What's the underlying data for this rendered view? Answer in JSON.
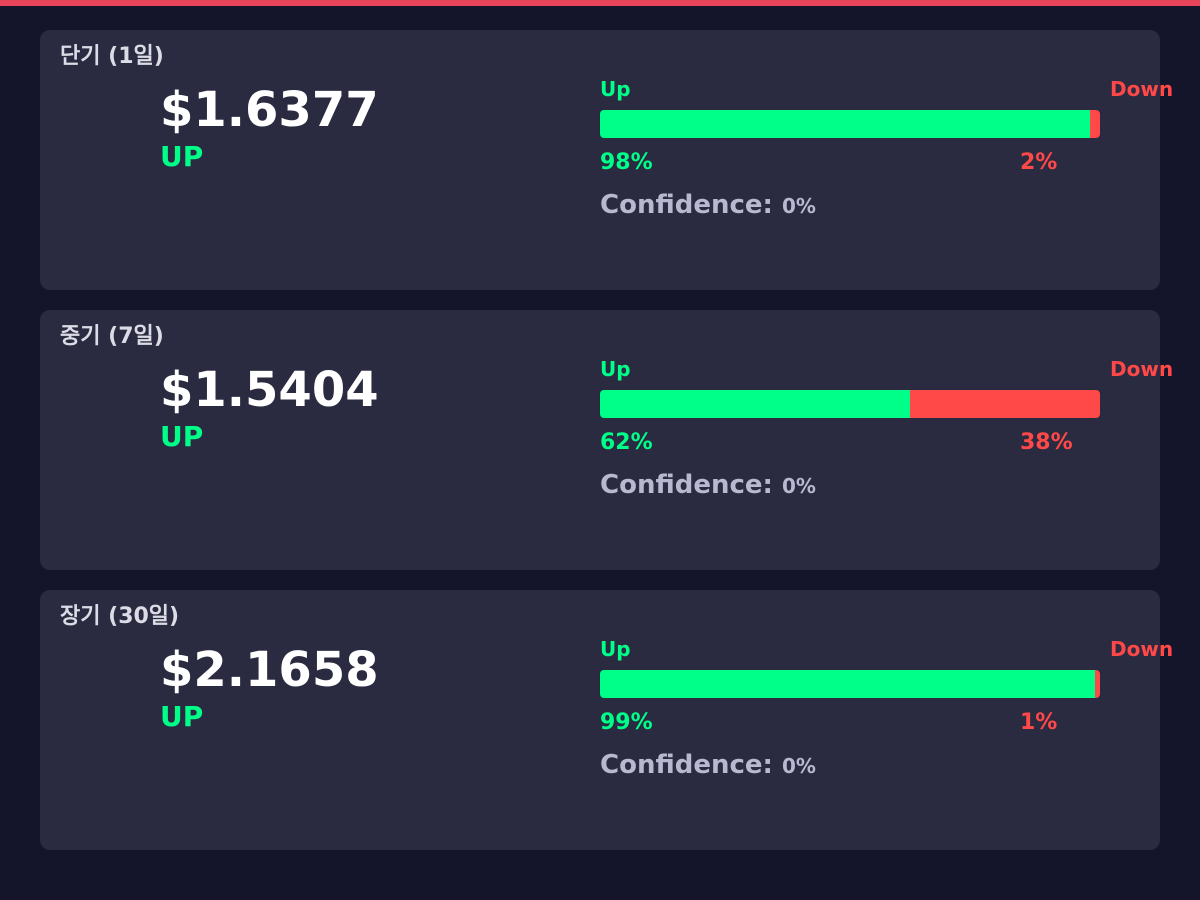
{
  "cards": [
    {
      "title": "단기 (1일)",
      "price": "$1.6377",
      "direction": "UP",
      "up_name": "Up",
      "down_name": "Down",
      "up": {
        "value": 98,
        "label": "98%"
      },
      "down": {
        "value": 2,
        "label": "2%"
      },
      "confidence_label": "Confidence:",
      "confidence_value": "0%"
    },
    {
      "title": "중기 (7일)",
      "price": "$1.5404",
      "direction": "UP",
      "up_name": "Up",
      "down_name": "Down",
      "up": {
        "value": 62,
        "label": "62%"
      },
      "down": {
        "value": 38,
        "label": "38%"
      },
      "confidence_label": "Confidence:",
      "confidence_value": "0%"
    },
    {
      "title": "장기 (30일)",
      "price": "$2.1658",
      "direction": "UP",
      "up_name": "Up",
      "down_name": "Down",
      "up": {
        "value": 99,
        "label": "99%"
      },
      "down": {
        "value": 1,
        "label": "1%"
      },
      "confidence_label": "Confidence:",
      "confidence_value": "0%"
    }
  ]
}
